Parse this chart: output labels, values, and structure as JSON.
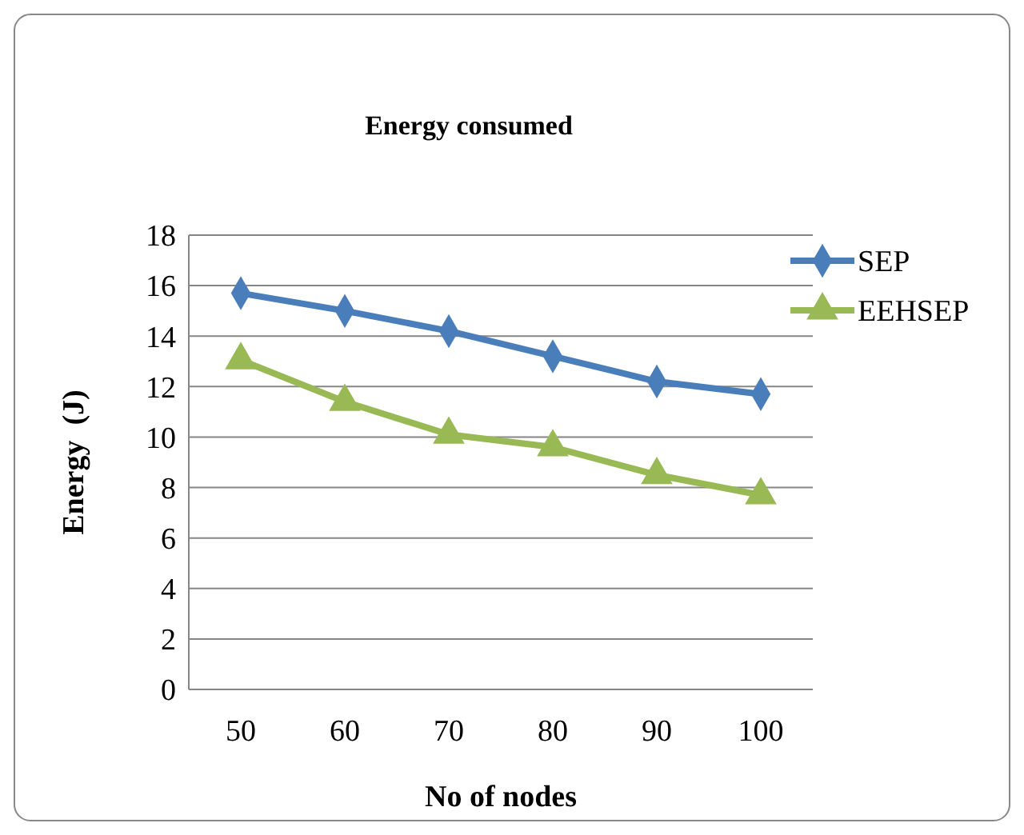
{
  "chart_data": {
    "type": "line",
    "title": "Energy consumed",
    "xlabel": "No of nodes",
    "ylabel": "Energy  (J)",
    "categories": [
      "50",
      "60",
      "70",
      "80",
      "90",
      "100"
    ],
    "series": [
      {
        "name": "SEP",
        "color": "#4a7ebb",
        "values": [
          15.7,
          15.0,
          14.2,
          13.2,
          12.2,
          11.7
        ],
        "marker": "diamond"
      },
      {
        "name": "EEHSEP",
        "color": "#98b954",
        "values": [
          13.05,
          11.4,
          10.1,
          9.6,
          8.5,
          7.7
        ],
        "marker": "triangle"
      }
    ],
    "ylim": [
      0,
      18
    ],
    "yticks": [
      0,
      2,
      4,
      6,
      8,
      10,
      12,
      14,
      16,
      18
    ],
    "grid": "y",
    "legend": "right"
  }
}
